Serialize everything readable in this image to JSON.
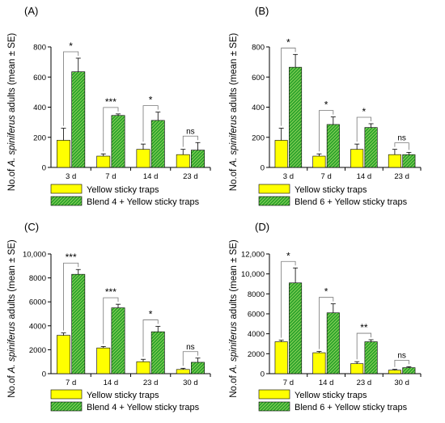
{
  "figure": {
    "colors": {
      "yellow": "#ffff00",
      "green": "#2aa12a",
      "stroke": "#000000"
    },
    "legend_yellow": "Yellow sticky traps",
    "ylabel_prefix": "No.of",
    "ylabel_species": "A. spiniferus",
    "ylabel_suffix": "adults (mean ± SE)"
  },
  "chart_data": [
    {
      "type": "bar",
      "panel_label": "(A)",
      "categories": [
        "3 d",
        "7 d",
        "14 d",
        "23 d"
      ],
      "ylim": [
        0,
        800
      ],
      "yticks": [
        0,
        200,
        400,
        600,
        800
      ],
      "ytick_labels": [
        "0",
        "200",
        "400",
        "600",
        "800"
      ],
      "series": [
        {
          "name": "Yellow sticky traps",
          "values": [
            180,
            75,
            120,
            85
          ],
          "errors": [
            80,
            15,
            35,
            35
          ]
        },
        {
          "name": "Blend 4 + Yellow sticky traps",
          "values": [
            635,
            345,
            312,
            115
          ],
          "errors": [
            90,
            10,
            55,
            50
          ]
        }
      ],
      "significance": [
        "*",
        "***",
        "*",
        "ns"
      ]
    },
    {
      "type": "bar",
      "panel_label": "(B)",
      "categories": [
        "3 d",
        "7 d",
        "14 d",
        "23 d"
      ],
      "ylim": [
        0,
        800
      ],
      "yticks": [
        0,
        200,
        400,
        600,
        800
      ],
      "ytick_labels": [
        "0",
        "200",
        "400",
        "600",
        "800"
      ],
      "series": [
        {
          "name": "Yellow sticky traps",
          "values": [
            180,
            75,
            120,
            85
          ],
          "errors": [
            80,
            15,
            35,
            35
          ]
        },
        {
          "name": "Blend 6 + Yellow sticky traps",
          "values": [
            665,
            285,
            265,
            85
          ],
          "errors": [
            85,
            50,
            25,
            15
          ]
        }
      ],
      "significance": [
        "*",
        "*",
        "*",
        "ns"
      ]
    },
    {
      "type": "bar",
      "panel_label": "(C)",
      "categories": [
        "7 d",
        "14 d",
        "23 d",
        "30 d"
      ],
      "ylim": [
        0,
        10000
      ],
      "yticks": [
        0,
        2000,
        4000,
        6000,
        8000,
        10000
      ],
      "ytick_labels": [
        "0",
        "2000",
        "4000",
        "6000",
        "8000",
        "10,000"
      ],
      "series": [
        {
          "name": "Yellow sticky traps",
          "values": [
            3200,
            2150,
            1000,
            350
          ],
          "errors": [
            200,
            120,
            200,
            100
          ]
        },
        {
          "name": "Blend 4 + Yellow sticky traps",
          "values": [
            8300,
            5500,
            3500,
            950
          ],
          "errors": [
            400,
            300,
            450,
            350
          ]
        }
      ],
      "significance": [
        "***",
        "***",
        "*",
        "ns"
      ]
    },
    {
      "type": "bar",
      "panel_label": "(D)",
      "categories": [
        "7 d",
        "14 d",
        "23 d",
        "30 d"
      ],
      "ylim": [
        0,
        12000
      ],
      "yticks": [
        0,
        2000,
        4000,
        6000,
        8000,
        10000,
        12000
      ],
      "ytick_labels": [
        "0",
        "2000",
        "4000",
        "6000",
        "8000",
        "10,000",
        "12,000"
      ],
      "series": [
        {
          "name": "Yellow sticky traps",
          "values": [
            3200,
            2100,
            1000,
            350
          ],
          "errors": [
            150,
            120,
            200,
            80
          ]
        },
        {
          "name": "Blend 6 + Yellow sticky traps",
          "values": [
            9100,
            6100,
            3200,
            600
          ],
          "errors": [
            1500,
            900,
            200,
            100
          ]
        }
      ],
      "significance": [
        "*",
        "*",
        "**",
        "ns"
      ]
    }
  ]
}
